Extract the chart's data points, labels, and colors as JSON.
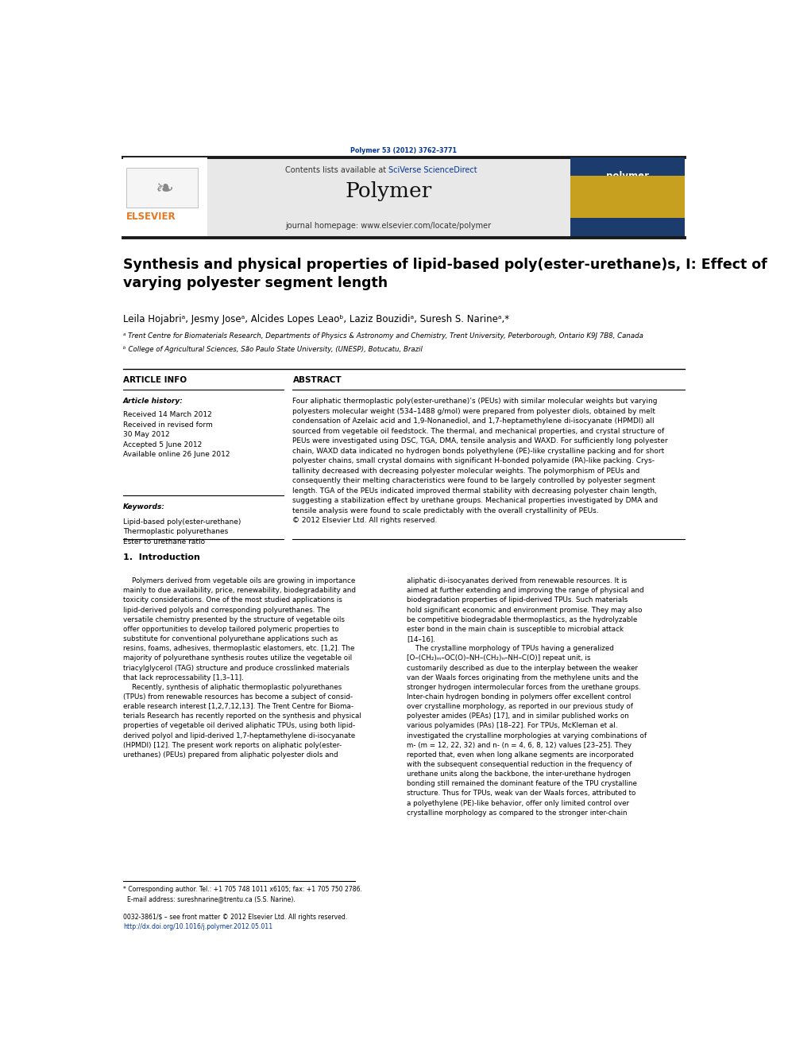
{
  "page_width": 9.92,
  "page_height": 13.23,
  "bg_color": "#ffffff",
  "journal_ref": "Polymer 53 (2012) 3762–3771",
  "journal_ref_color": "#003399",
  "header_bg": "#e8e8e8",
  "header_journal_name": "Polymer",
  "header_contents_text": "Contents lists available at ",
  "header_sciverse": "SciVerse ScienceDirect",
  "header_homepage": "journal homepage: www.elsevier.com/locate/polymer",
  "header_sciverse_color": "#003399",
  "header_homepage_color": "#000000",
  "title": "Synthesis and physical properties of lipid-based poly(ester-urethane)s, I: Effect of\nvarying polyester segment length",
  "authors": "Leila Hojabriᵃ, Jesmy Joseᵃ, Alcides Lopes Leaoᵇ, Laziz Bouzidiᵃ, Suresh S. Narineᵃ,*",
  "affil_a": "ᵃ Trent Centre for Biomaterials Research, Departments of Physics & Astronomy and Chemistry, Trent University, Peterborough, Ontario K9J 7B8, Canada",
  "affil_b": "ᵇ College of Agricultural Sciences, São Paulo State University, (UNESP), Botucatu, Brazil",
  "article_info_header": "ARTICLE INFO",
  "article_history_label": "Article history:",
  "article_history": "Received 14 March 2012\nReceived in revised form\n30 May 2012\nAccepted 5 June 2012\nAvailable online 26 June 2012",
  "keywords_label": "Keywords:",
  "keywords": "Lipid-based poly(ester-urethane)\nThermoplastic polyurethanes\nEster to urethane ratio",
  "abstract_header": "ABSTRACT",
  "abstract_text": "Four aliphatic thermoplastic poly(ester-urethane)’s (PEUs) with similar molecular weights but varying\npolyesters molecular weight (534–1488 g/mol) were prepared from polyester diols, obtained by melt\ncondensation of Azelaic acid and 1,9-Nonanediol, and 1,7-heptamethylene di-isocyanate (HPMDI) all\nsourced from vegetable oil feedstock. The thermal, and mechanical properties, and crystal structure of\nPEUs were investigated using DSC, TGA, DMA, tensile analysis and WAXD. For sufficiently long polyester\nchain, WAXD data indicated no hydrogen bonds polyethylene (PE)-like crystalline packing and for short\npolyester chains, small crystal domains with significant H-bonded polyamide (PA)-like packing. Crys-\ntallinity decreased with decreasing polyester molecular weights. The polymorphism of PEUs and\nconsequently their melting characteristics were found to be largely controlled by polyester segment\nlength. TGA of the PEUs indicated improved thermal stability with decreasing polyester chain length,\nsuggesting a stabilization effect by urethane groups. Mechanical properties investigated by DMA and\ntensile analysis were found to scale predictably with the overall crystallinity of PEUs.\n© 2012 Elsevier Ltd. All rights reserved.",
  "intro_header": "1.  Introduction",
  "intro_col1": "    Polymers derived from vegetable oils are growing in importance\nmainly to due availability, price, renewability, biodegradability and\ntoxicity considerations. One of the most studied applications is\nlipid-derived polyols and corresponding polyurethanes. The\nversatile chemistry presented by the structure of vegetable oils\noffer opportunities to develop tailored polymeric properties to\nsubstitute for conventional polyurethane applications such as\nresins, foams, adhesives, thermoplastic elastomers, etc. [1,2]. The\nmajority of polyurethane synthesis routes utilize the vegetable oil\ntriacylglycerol (TAG) structure and produce crosslinked materials\nthat lack reprocessability [1,3–11].\n    Recently, synthesis of aliphatic thermoplastic polyurethanes\n(TPUs) from renewable resources has become a subject of consid-\nerable research interest [1,2,7,12,13]. The Trent Centre for Bioma-\nterials Research has recently reported on the synthesis and physical\nproperties of vegetable oil derived aliphatic TPUs, using both lipid-\nderived polyol and lipid-derived 1,7-heptamethylene di-isocyanate\n(HPMDI) [12]. The present work reports on aliphatic poly(ester-\nurethanes) (PEUs) prepared from aliphatic polyester diols and",
  "intro_col2": "aliphatic di-isocyanates derived from renewable resources. It is\naimed at further extending and improving the range of physical and\nbiodegradation properties of lipid-derived TPUs. Such materials\nhold significant economic and environment promise. They may also\nbe competitive biodegradable thermoplastics, as the hydrolyzable\nester bond in the main chain is susceptible to microbial attack\n[14–16].\n    The crystalline morphology of TPUs having a generalized\n[O–(CH₂)ₘ–OC(O)–NH–(CH₂)ₙ–NH–C(O)] repeat unit, is\ncustomarily described as due to the interplay between the weaker\nvan der Waals forces originating from the methylene units and the\nstronger hydrogen intermolecular forces from the urethane groups.\nInter-chain hydrogen bonding in polymers offer excellent control\nover crystalline morphology, as reported in our previous study of\npolyester amides (PEAs) [17], and in similar published works on\nvarious polyamides (PAs) [18–22]. For TPUs, McKleman et al.\ninvestigated the crystalline morphologies at varying combinations of\nm- (m = 12, 22, 32) and n- (n = 4, 6, 8, 12) values [23–25]. They\nreported that, even when long alkane segments are incorporated\nwith the subsequent consequential reduction in the frequency of\nurethane units along the backbone, the inter-urethane hydrogen\nbonding still remained the dominant feature of the TPU crystalline\nstructure. Thus for TPUs, weak van der Waals forces, attributed to\na polyethylene (PE)-like behavior, offer only limited control over\ncrystalline morphology as compared to the stronger inter-chain",
  "footer_note": "* Corresponding author. Tel.: +1 705 748 1011 x6105; fax: +1 705 750 2786.\n  E-mail address: sureshnarine@trentu.ca (S.S. Narine).",
  "footer_issn": "0032-3861/$ – see front matter © 2012 Elsevier Ltd. All rights reserved.",
  "footer_doi": "http://dx.doi.org/10.1016/j.polymer.2012.05.011",
  "link_color": "#003399"
}
